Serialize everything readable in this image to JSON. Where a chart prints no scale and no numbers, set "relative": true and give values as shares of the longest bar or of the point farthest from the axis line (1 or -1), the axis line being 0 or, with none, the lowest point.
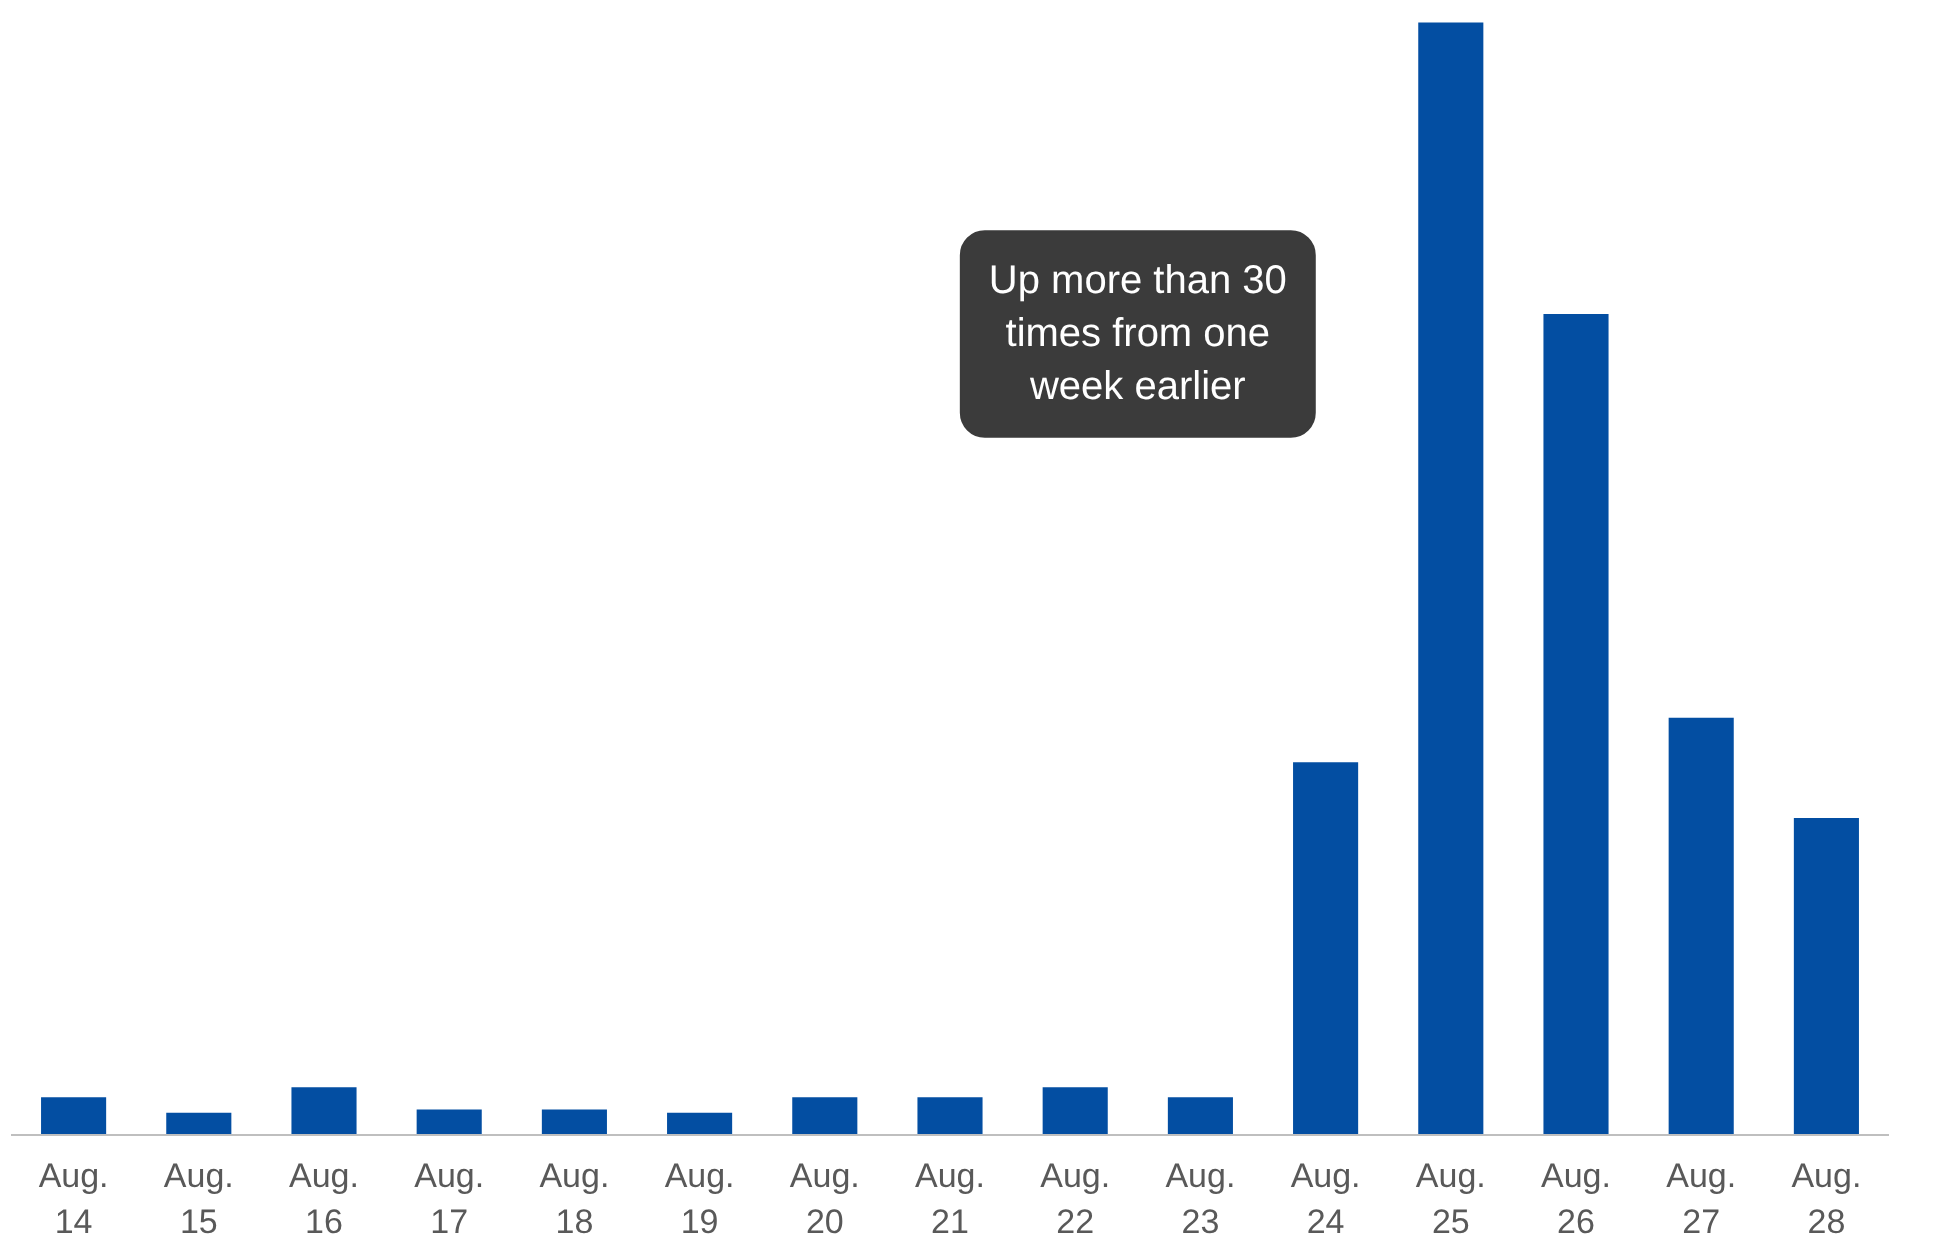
{
  "chart_data": {
    "type": "bar",
    "relative": true,
    "categories": [
      "Aug. 14",
      "Aug. 15",
      "Aug. 16",
      "Aug. 17",
      "Aug. 18",
      "Aug. 19",
      "Aug. 20",
      "Aug. 21",
      "Aug. 22",
      "Aug. 23",
      "Aug. 24",
      "Aug. 25",
      "Aug. 26",
      "Aug. 27",
      "Aug. 28"
    ],
    "values": [
      0.034,
      0.02,
      0.043,
      0.023,
      0.023,
      0.02,
      0.034,
      0.034,
      0.043,
      0.034,
      0.335,
      1,
      0.738,
      0.375,
      0.285
    ],
    "color": "#034ea2",
    "grid": false,
    "annotations": [
      "Up more than 30 times from one week earlier"
    ]
  }
}
